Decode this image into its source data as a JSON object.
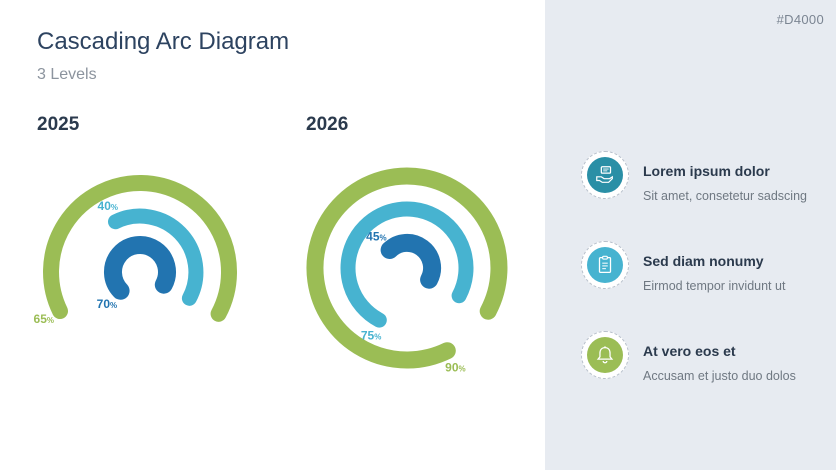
{
  "header": {
    "title": "Cascading Arc Diagram",
    "subtitle": "3 Levels",
    "code": "#D4000"
  },
  "colors": {
    "green": "#9bbd55",
    "light_blue": "#47b3d0",
    "dark_blue": "#2274b0",
    "teal": "#2a8fa6",
    "panel": "#e7ebf1"
  },
  "diagrams": [
    {
      "year": "2025",
      "arcs": [
        {
          "level": "outer",
          "percent": 65,
          "label": "65",
          "color": "green"
        },
        {
          "level": "middle",
          "percent": 40,
          "label": "40",
          "color": "light_blue"
        },
        {
          "level": "inner",
          "percent": 70,
          "label": "70",
          "color": "dark_blue"
        }
      ]
    },
    {
      "year": "2026",
      "arcs": [
        {
          "level": "outer",
          "percent": 90,
          "label": "90",
          "color": "green"
        },
        {
          "level": "middle",
          "percent": 75,
          "label": "75",
          "color": "light_blue"
        },
        {
          "level": "inner",
          "percent": 45,
          "label": "45",
          "color": "dark_blue"
        }
      ]
    }
  ],
  "percent_sign": "%",
  "legend": [
    {
      "icon": "hand-message-icon",
      "color": "teal",
      "title": "Lorem ipsum dolor",
      "text": "Sit amet, consetetur sadscing"
    },
    {
      "icon": "clipboard-icon",
      "color": "light_blue",
      "title": "Sed diam nonumy",
      "text": "Eirmod tempor invidunt ut"
    },
    {
      "icon": "bell-icon",
      "color": "green",
      "title": "At vero eos et",
      "text": "Accusam et justo duo dolos"
    }
  ]
}
